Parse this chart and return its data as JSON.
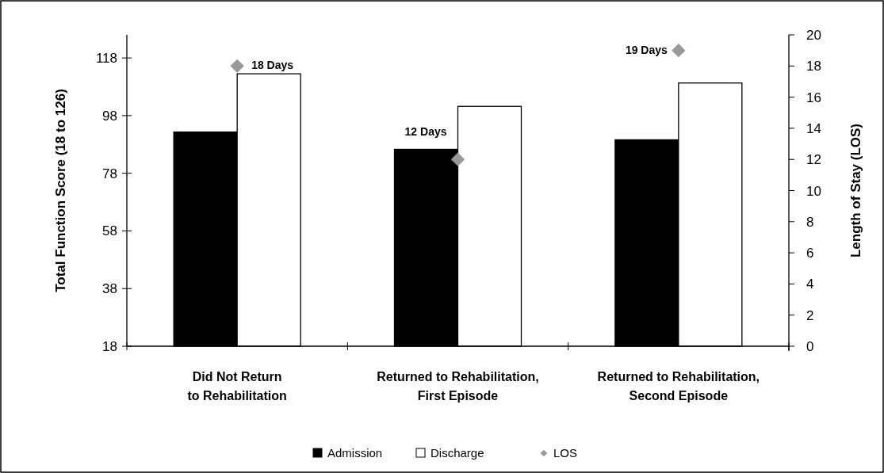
{
  "chart_data": {
    "type": "bar",
    "ylabel": "Total Function Score (18 to 126)",
    "y2label": "Length of Stay (LOS)",
    "categories": [
      "Did Not Return\nto Rehabilitation",
      "Returned to Rehabilitation,\nFirst Episode",
      "Returned to Rehabilitation,\nSecond Episode"
    ],
    "series": [
      {
        "name": "Admission",
        "color": "#000000",
        "values": [
          92.3,
          86.3,
          89.6
        ]
      },
      {
        "name": "Discharge",
        "color": "#ffffff",
        "values": [
          112.5,
          101.2,
          109.3
        ]
      },
      {
        "name": "LOS",
        "type": "scatter",
        "axis": "y2",
        "color": "#999999",
        "marker": "diamond",
        "values": [
          18,
          12,
          19
        ],
        "value_labels": [
          "18 Days",
          "12 Days",
          "19 Days"
        ]
      }
    ],
    "ylim": [
      18,
      126
    ],
    "yticks": [
      18,
      38,
      58,
      78,
      98,
      118
    ],
    "y2lim": [
      0,
      20
    ],
    "y2ticks": [
      0,
      2,
      4,
      6,
      8,
      10,
      12,
      14,
      16,
      18,
      20
    ],
    "grid": false,
    "legend": "bottom"
  }
}
